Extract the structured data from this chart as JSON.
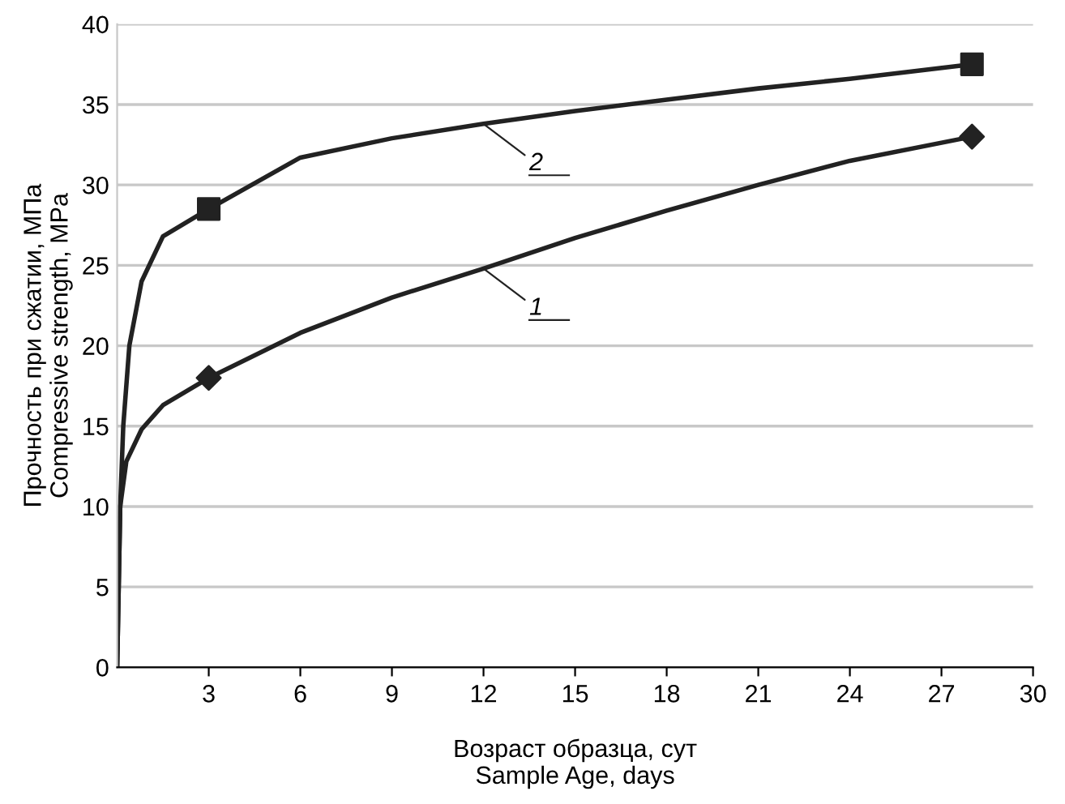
{
  "chart_data": {
    "type": "line",
    "xlabel": "Возраст образца, сут\nSample Age, days",
    "ylabel": "Прочность при сжатии, МПа\nCompressive strength, MPa",
    "series": [
      {
        "color": "#222222",
        "x": [
          0,
          0.05,
          0.1,
          0.2,
          0.4,
          0.8,
          1.5,
          3,
          6,
          9,
          12,
          15,
          18,
          21,
          24,
          28
        ],
        "values": [
          0,
          5,
          10,
          15,
          20,
          24,
          26.8,
          28.5,
          31.7,
          32.9,
          33.8,
          34.6,
          35.3,
          36,
          36.6,
          37.5
        ]
      },
      {
        "color": "#222222",
        "x": [
          0,
          0.05,
          0.1,
          0.3,
          0.8,
          1.5,
          3,
          6,
          9,
          12,
          15,
          18,
          21,
          24,
          28
        ],
        "values": [
          0,
          5,
          10,
          12.8,
          14.8,
          16.3,
          18,
          20.8,
          23,
          24.8,
          26.7,
          28.4,
          30,
          31.5,
          33
        ]
      },
      {
        "type": "scatter",
        "color": "#222222",
        "x": [
          3,
          28
        ],
        "values": [
          28.5,
          37.5
        ],
        "marker": "square"
      },
      {
        "type": "scatter",
        "color": "#222222",
        "x": [
          3,
          28
        ],
        "values": [
          18,
          33
        ],
        "marker": "diamond"
      }
    ],
    "xlim": [
      0,
      30
    ],
    "xticks": [
      3,
      6,
      9,
      12,
      15,
      18,
      21,
      24,
      27,
      30
    ],
    "ylim": [
      0,
      40
    ],
    "yticks": [
      0,
      5,
      10,
      15,
      20,
      25,
      30,
      35,
      40
    ],
    "grid": "y",
    "legend": false,
    "annotations": [
      {
        "text": "1",
        "x": 12,
        "y": 24.8
      },
      {
        "text": "2",
        "x": 12,
        "y": 33.8
      }
    ]
  }
}
